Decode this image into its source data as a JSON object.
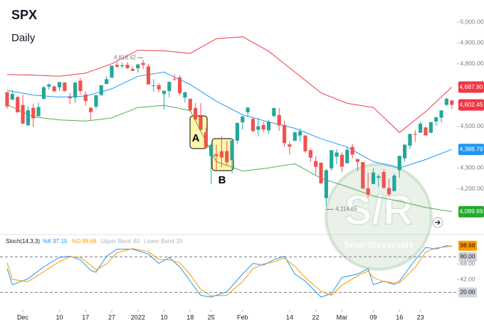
{
  "chart_data": [
    {
      "type": "candlestick",
      "title": "SPX",
      "subtitle": "Daily",
      "open": [
        4664,
        4628,
        4640,
        4602,
        4504,
        4589,
        4548,
        4631,
        4690,
        4691,
        4687,
        4710,
        4642,
        4637,
        4719,
        4652,
        4588,
        4594,
        4650,
        4703,
        4733,
        4795,
        4788,
        4795,
        4775,
        4778,
        4804,
        4787,
        4693,
        4697,
        4655,
        4669,
        4728,
        4734,
        4638,
        4632,
        4588,
        4548,
        4471,
        4357,
        4366,
        4380,
        4381,
        4337,
        4431,
        4519,
        4567,
        4535,
        4483,
        4506,
        4480,
        4548,
        4554,
        4506,
        4413,
        4430,
        4456,
        4456,
        4385,
        4333,
        4325,
        4155,
        4298,
        4354,
        4363,
        4322,
        4401,
        4343,
        4328,
        4202,
        4223,
        4253,
        4280,
        4203,
        4189,
        4289,
        4346,
        4407,
        4463,
        4469,
        4494,
        4469,
        4523,
        4541,
        4603,
        4624
      ],
      "high": [
        4664,
        4673,
        4647,
        4652,
        4596,
        4608,
        4613,
        4694,
        4705,
        4695,
        4713,
        4710,
        4660,
        4712,
        4732,
        4667,
        4593,
        4651,
        4697,
        4741,
        4791,
        4808,
        4805,
        4808,
        4787,
        4797,
        4818.62,
        4798,
        4726,
        4708,
        4673,
        4714,
        4749,
        4745,
        4666,
        4632,
        4611,
        4612,
        4494,
        4417,
        4411,
        4453,
        4429,
        4432,
        4516,
        4550,
        4595,
        4542,
        4540,
        4521,
        4530,
        4590,
        4589,
        4527,
        4427,
        4472,
        4490,
        4456,
        4395,
        4357,
        4326,
        4295,
        4385,
        4389,
        4375,
        4401,
        4416,
        4343,
        4328,
        4277,
        4299,
        4269,
        4292,
        4247,
        4272,
        4358,
        4412,
        4465,
        4481,
        4523,
        4501,
        4520,
        4546,
        4576,
        4637,
        4627
      ],
      "low": [
        4585,
        4625,
        4565,
        4510,
        4504,
        4495,
        4547,
        4631,
        4675,
        4665,
        4670,
        4667,
        4606,
        4612,
        4652,
        4599,
        4531,
        4583,
        4645,
        4703,
        4733,
        4780,
        4778,
        4775,
        4765,
        4758,
        4774,
        4700,
        4667,
        4663,
        4582,
        4638,
        4718,
        4650,
        4614,
        4568,
        4530,
        4480,
        4395,
        4222,
        4287,
        4304,
        4309,
        4273,
        4415,
        4484,
        4545,
        4471,
        4451,
        4471,
        4465,
        4548,
        4478,
        4402,
        4365,
        4429,
        4427,
        4373,
        4328,
        4267,
        4223,
        4114.65,
        4287,
        4318,
        4279,
        4322,
        4345,
        4285,
        4199,
        4157,
        4223,
        4209,
        4200,
        4162,
        4187,
        4252,
        4329,
        4391,
        4425,
        4469,
        4455,
        4466,
        4502,
        4517,
        4596,
        4582
      ],
      "close": [
        4595,
        4655,
        4567,
        4513,
        4577,
        4538,
        4592,
        4687,
        4701,
        4668,
        4712,
        4669,
        4634,
        4710,
        4669,
        4621,
        4568,
        4649,
        4697,
        4726,
        4791,
        4786,
        4793,
        4779,
        4766,
        4797,
        4794,
        4701,
        4696,
        4677,
        4670,
        4713,
        4726,
        4659,
        4663,
        4577,
        4533,
        4483,
        4398,
        4410,
        4357,
        4350,
        4327,
        4432,
        4516,
        4547,
        4589,
        4477,
        4500,
        4484,
        4522,
        4587,
        4504,
        4419,
        4402,
        4471,
        4475,
        4380,
        4349,
        4305,
        4226,
        4289,
        4385,
        4374,
        4306,
        4387,
        4364,
        4329,
        4201,
        4171,
        4278,
        4260,
        4204,
        4173,
        4263,
        4358,
        4412,
        4463,
        4461,
        4512,
        4456,
        4520,
        4543,
        4576,
        4632,
        4602.45
      ],
      "up_color": "#26a69a",
      "down_color": "#ef5350",
      "series": [
        {
          "color": "#f23645",
          "x": [
            0,
            5,
            10,
            15,
            20,
            25,
            30,
            35,
            40,
            45,
            50,
            55,
            60,
            65,
            70,
            75,
            80,
            85
          ],
          "values": [
            4748,
            4745,
            4740,
            4755,
            4800,
            4865,
            4862,
            4850,
            4920,
            4930,
            4860,
            4760,
            4660,
            4610,
            4590,
            4470,
            4570,
            4687.9
          ]
        },
        {
          "color": "#2196f3",
          "x": [
            0,
            5,
            10,
            15,
            20,
            25,
            30,
            35,
            40,
            45,
            50,
            55,
            60,
            65,
            70,
            75,
            80,
            85
          ],
          "values": [
            4672,
            4650,
            4640,
            4645,
            4680,
            4740,
            4760,
            4700,
            4620,
            4555,
            4520,
            4490,
            4440,
            4400,
            4330,
            4300,
            4340,
            4388.79
          ]
        },
        {
          "color": "#4caf50",
          "x": [
            0,
            5,
            10,
            15,
            20,
            25,
            30,
            35,
            40,
            45,
            50,
            55,
            60,
            65,
            70,
            75,
            80,
            85
          ],
          "values": [
            4604,
            4545,
            4530,
            4525,
            4540,
            4590,
            4600,
            4575,
            4330,
            4285,
            4300,
            4320,
            4250,
            4210,
            4165,
            4140,
            4110,
            4089.69
          ]
        }
      ],
      "ylim": [
        3997,
        5072
      ],
      "yticks": [
        {
          "value": 5000,
          "label": "5,000.00"
        },
        {
          "value": 4900,
          "label": "4,900.00"
        },
        {
          "value": 4800,
          "label": "4,800.00"
        },
        {
          "value": 4500,
          "label": "4,500.00"
        },
        {
          "value": 4300,
          "label": "4,300.00"
        },
        {
          "value": 4200,
          "label": "4,200.00"
        }
      ],
      "price_tags": [
        {
          "value": 4687.9,
          "label": "4,687.90",
          "color": "#f23645"
        },
        {
          "value": 4602.45,
          "label": "4,602.45",
          "color": "#f23645"
        },
        {
          "value": 4388.79,
          "label": "4,388.79",
          "color": "#2196f3"
        },
        {
          "value": 4089.69,
          "label": "4,089.69",
          "color": "#22ab2c"
        }
      ],
      "high_label": "4,818.62",
      "low_label": "4,114.65",
      "annotations": [
        "A",
        "B"
      ],
      "watermark": {
        "logo": "S/R",
        "name": "SmartReversals"
      },
      "xticks": [
        {
          "value": 3,
          "label": "Dec"
        },
        {
          "value": 10,
          "label": "10"
        },
        {
          "value": 15,
          "label": "17"
        },
        {
          "value": 20,
          "label": "27"
        },
        {
          "value": 25,
          "label": "2022"
        },
        {
          "value": 30,
          "label": "10"
        },
        {
          "value": 35,
          "label": "18"
        },
        {
          "value": 39,
          "label": "25"
        },
        {
          "value": 45,
          "label": "Feb"
        },
        {
          "value": 54,
          "label": "14"
        },
        {
          "value": 59,
          "label": "22"
        },
        {
          "value": 64,
          "label": "Mar"
        },
        {
          "value": 70,
          "label": "09"
        },
        {
          "value": 75,
          "label": "16"
        },
        {
          "value": 79,
          "label": "23"
        }
      ]
    },
    {
      "type": "line",
      "title": "Stoch(14,3,3)",
      "series": [
        {
          "name": "%K",
          "color": "#2196f3",
          "x": [
            0,
            1,
            4,
            7,
            10,
            12,
            14,
            16,
            17,
            19,
            21,
            24,
            27,
            29,
            31,
            33,
            35,
            37,
            39,
            42,
            45,
            47,
            49,
            51,
            53,
            55,
            57,
            60,
            62,
            64,
            67,
            69,
            70,
            72,
            74,
            75,
            78,
            80,
            82,
            84,
            85
          ],
          "values": [
            60,
            33,
            43,
            63,
            79,
            81,
            75,
            57,
            54,
            81,
            93,
            93,
            85,
            69,
            79,
            63,
            39,
            15,
            12,
            21,
            51,
            69,
            66,
            75,
            81,
            51,
            39,
            12,
            18,
            45,
            51,
            60,
            33,
            39,
            33,
            39,
            75,
            96,
            93,
            99,
            97.15
          ]
        },
        {
          "name": "%D",
          "color": "#ff9800",
          "tag": true,
          "x": [
            0,
            1,
            4,
            7,
            10,
            12,
            14,
            16,
            17,
            19,
            21,
            24,
            27,
            29,
            31,
            33,
            35,
            37,
            39,
            42,
            45,
            47,
            49,
            51,
            53,
            55,
            57,
            60,
            62,
            64,
            67,
            69,
            70,
            72,
            74,
            75,
            78,
            80,
            82,
            84,
            85
          ],
          "values": [
            70,
            42,
            38,
            55,
            72,
            80,
            79,
            66,
            58,
            68,
            87,
            94,
            89,
            76,
            75,
            70,
            50,
            25,
            14,
            15,
            38,
            60,
            68,
            71,
            78,
            64,
            45,
            22,
            15,
            32,
            48,
            56,
            45,
            38,
            36,
            36,
            62,
            88,
            95,
            97,
            98.68
          ]
        }
      ],
      "bands": [
        {
          "name": "Upper Band",
          "value": 80,
          "label": "80.00"
        },
        {
          "name": "Lower Band",
          "value": 20,
          "label": "20.00"
        }
      ],
      "ylim": [
        0,
        114
      ],
      "yticks": [
        {
          "value": 68,
          "label": "68.00"
        },
        {
          "value": 42,
          "label": "42.00"
        }
      ]
    }
  ]
}
